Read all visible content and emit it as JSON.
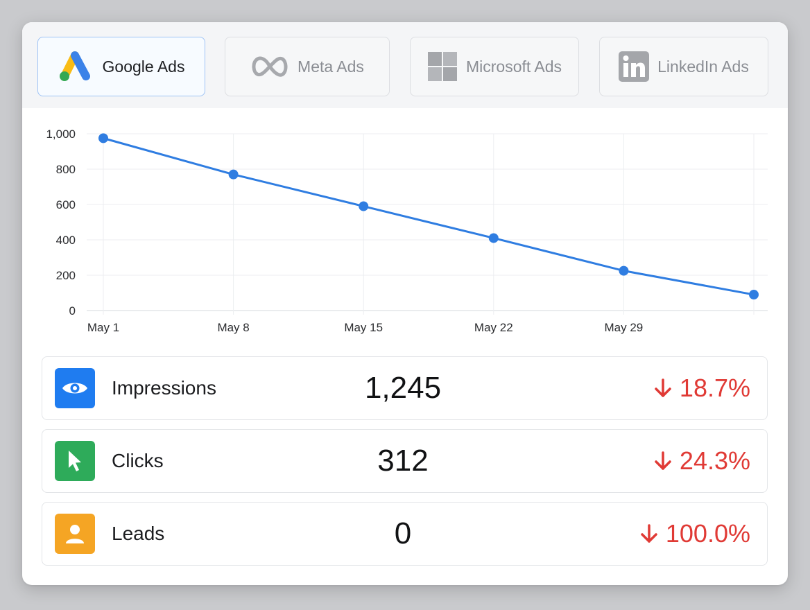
{
  "tabs": [
    {
      "label": "Google Ads",
      "icon": "google-ads-icon",
      "active": true
    },
    {
      "label": "Meta Ads",
      "icon": "meta-icon",
      "active": false
    },
    {
      "label": "Microsoft Ads",
      "icon": "microsoft-icon",
      "active": false
    },
    {
      "label": "LinkedIn Ads",
      "icon": "linkedin-icon",
      "active": false
    }
  ],
  "chart_data": {
    "type": "line",
    "x": [
      "May 1",
      "May 8",
      "May 15",
      "May 22",
      "May 29",
      ""
    ],
    "x_tick_labels": [
      "May 1",
      "May 8",
      "May 15",
      "May 22",
      "May 29"
    ],
    "values": [
      975,
      770,
      590,
      410,
      225,
      90
    ],
    "ylim": [
      0,
      1000
    ],
    "y_ticks": [
      0,
      200,
      400,
      600,
      800,
      1000
    ],
    "y_tick_labels": [
      "0",
      "200",
      "400",
      "600",
      "800",
      "1,000"
    ],
    "grid": true,
    "color": "#2f7de1"
  },
  "metrics": [
    {
      "label": "Impressions",
      "value": "1,245",
      "change": "18.7%",
      "icon": "eye-icon",
      "color": "#1f7cf0"
    },
    {
      "label": "Clicks",
      "value": "312",
      "change": "24.3%",
      "icon": "cursor-icon",
      "color": "#2eab5a"
    },
    {
      "label": "Leads",
      "value": "0",
      "change": "100.0%",
      "icon": "person-icon",
      "color": "#f5a524"
    }
  ],
  "colors": {
    "decrease": "#e03a35",
    "accent": "#2f7de1"
  }
}
